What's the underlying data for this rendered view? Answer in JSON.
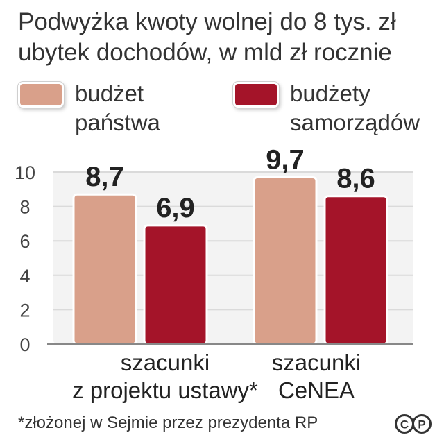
{
  "title": {
    "line1": "Podwyżka kwoty wolnej do 8 tys. zł",
    "line2": "ubytek dochodów, w mld zł rocznie"
  },
  "legend": [
    {
      "line1": "budżet",
      "line2": "państwa",
      "color": "#d9a08a"
    },
    {
      "line1": "budżety",
      "line2": "samorządów",
      "color": "#a41429"
    }
  ],
  "chart_data": {
    "type": "bar",
    "title": "Podwyżka kwoty wolnej do 8 tys. zł",
    "subtitle": "ubytek dochodów, w mld zł rocznie",
    "categories": [
      [
        "szacunki",
        "z projektu ustawy*"
      ],
      [
        "szacunki",
        "CeNEA"
      ]
    ],
    "series": [
      {
        "name": "budżet państwa",
        "values": [
          8.7,
          9.7
        ],
        "labels": [
          "8,7",
          "9,7"
        ],
        "color": "#d9a08a"
      },
      {
        "name": "budżety samorządów",
        "values": [
          6.9,
          8.6
        ],
        "labels": [
          "6,9",
          "8,6"
        ],
        "color": "#a41429"
      }
    ],
    "yticks": [
      0,
      2,
      4,
      6,
      8,
      10
    ],
    "ylim": [
      0,
      10
    ],
    "grid": true,
    "legend_position": "top"
  },
  "footnote": "*złożonej w Sejmie przez prezydenta RP",
  "logo": "cp-logo"
}
